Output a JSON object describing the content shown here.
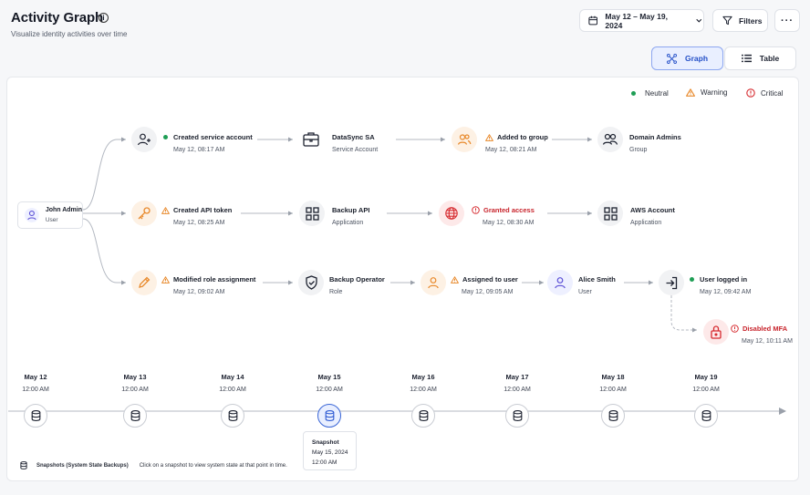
{
  "header": {
    "title": "Activity Graph",
    "subtitle": "Visualize identity activities over time",
    "date_range": "May 12 – May 19, 2024",
    "filters_label": "Filters",
    "more_label": "···"
  },
  "view_toggle": {
    "graph_label": "Graph",
    "table_label": "Table",
    "selected": "Graph"
  },
  "legend": {
    "neutral": "Neutral",
    "warning": "Warning",
    "critical": "Critical"
  },
  "colors": {
    "neutral": "#1e9e55",
    "warning": "#e8892b",
    "critical": "#d62a2f",
    "accent": "#2f5bd3"
  },
  "start_node": {
    "name": "John Admin",
    "role": "User",
    "icon": "user-icon"
  },
  "rows": [
    {
      "event1": {
        "title": "Created service account",
        "time": "May 12, 08:17 AM",
        "status": "neutral",
        "icon": "user-plus-icon"
      },
      "entity1": {
        "title": "DataSync SA",
        "sub": "Service Account",
        "icon": "briefcase-icon"
      },
      "event2": {
        "title": "Added to group",
        "time": "May 12, 08:21 AM",
        "status": "warning",
        "icon": "users-icon"
      },
      "entity2": {
        "title": "Domain Admins",
        "sub": "Group",
        "icon": "group-icon"
      }
    },
    {
      "event1": {
        "title": "Created API token",
        "time": "May 12, 08:25 AM",
        "status": "warning",
        "icon": "key-icon"
      },
      "entity1": {
        "title": "Backup API",
        "sub": "Application",
        "icon": "grid-icon"
      },
      "event2": {
        "title": "Granted access",
        "time": "May 12, 08:30 AM",
        "status": "critical",
        "icon": "globe-icon"
      },
      "entity2": {
        "title": "AWS Account",
        "sub": "Application",
        "icon": "grid-icon"
      }
    },
    {
      "event1": {
        "title": "Modified role assignment",
        "time": "May 12, 09:02 AM",
        "status": "warning",
        "icon": "pencil-icon"
      },
      "entity1": {
        "title": "Backup Operator",
        "sub": "Role",
        "icon": "shield-icon"
      },
      "event2": {
        "title": "Assigned to user",
        "time": "May 12, 09:05 AM",
        "status": "warning",
        "icon": "user-icon"
      },
      "entity2": {
        "title": "Alice Smith",
        "sub": "User",
        "icon": "user-icon"
      },
      "event3": {
        "title": "User logged in",
        "time": "May 12, 09:42 AM",
        "status": "neutral",
        "icon": "login-icon"
      },
      "event4": {
        "title": "Disabled MFA",
        "time": "May 12, 10:11 AM",
        "status": "critical",
        "icon": "lock-icon"
      }
    }
  ],
  "timeline": {
    "snapshots": [
      {
        "date": "May 12",
        "time": "12:00 AM"
      },
      {
        "date": "May 13",
        "time": "12:00 AM"
      },
      {
        "date": "May 14",
        "time": "12:00 AM"
      },
      {
        "date": "May 15",
        "time": "12:00 AM"
      },
      {
        "date": "May 16",
        "time": "12:00 AM"
      },
      {
        "date": "May 17",
        "time": "12:00 AM"
      },
      {
        "date": "May 18",
        "time": "12:00 AM"
      },
      {
        "date": "May 19",
        "time": "12:00 AM"
      }
    ],
    "selected_index": 3,
    "tooltip": {
      "title": "Snapshot",
      "date": "May 15, 2024",
      "time": "12:00 AM"
    }
  },
  "footer": {
    "legend_label": "Snapshots (System State Backups)",
    "hint": "Click on a snapshot to view system state at that point in time."
  }
}
